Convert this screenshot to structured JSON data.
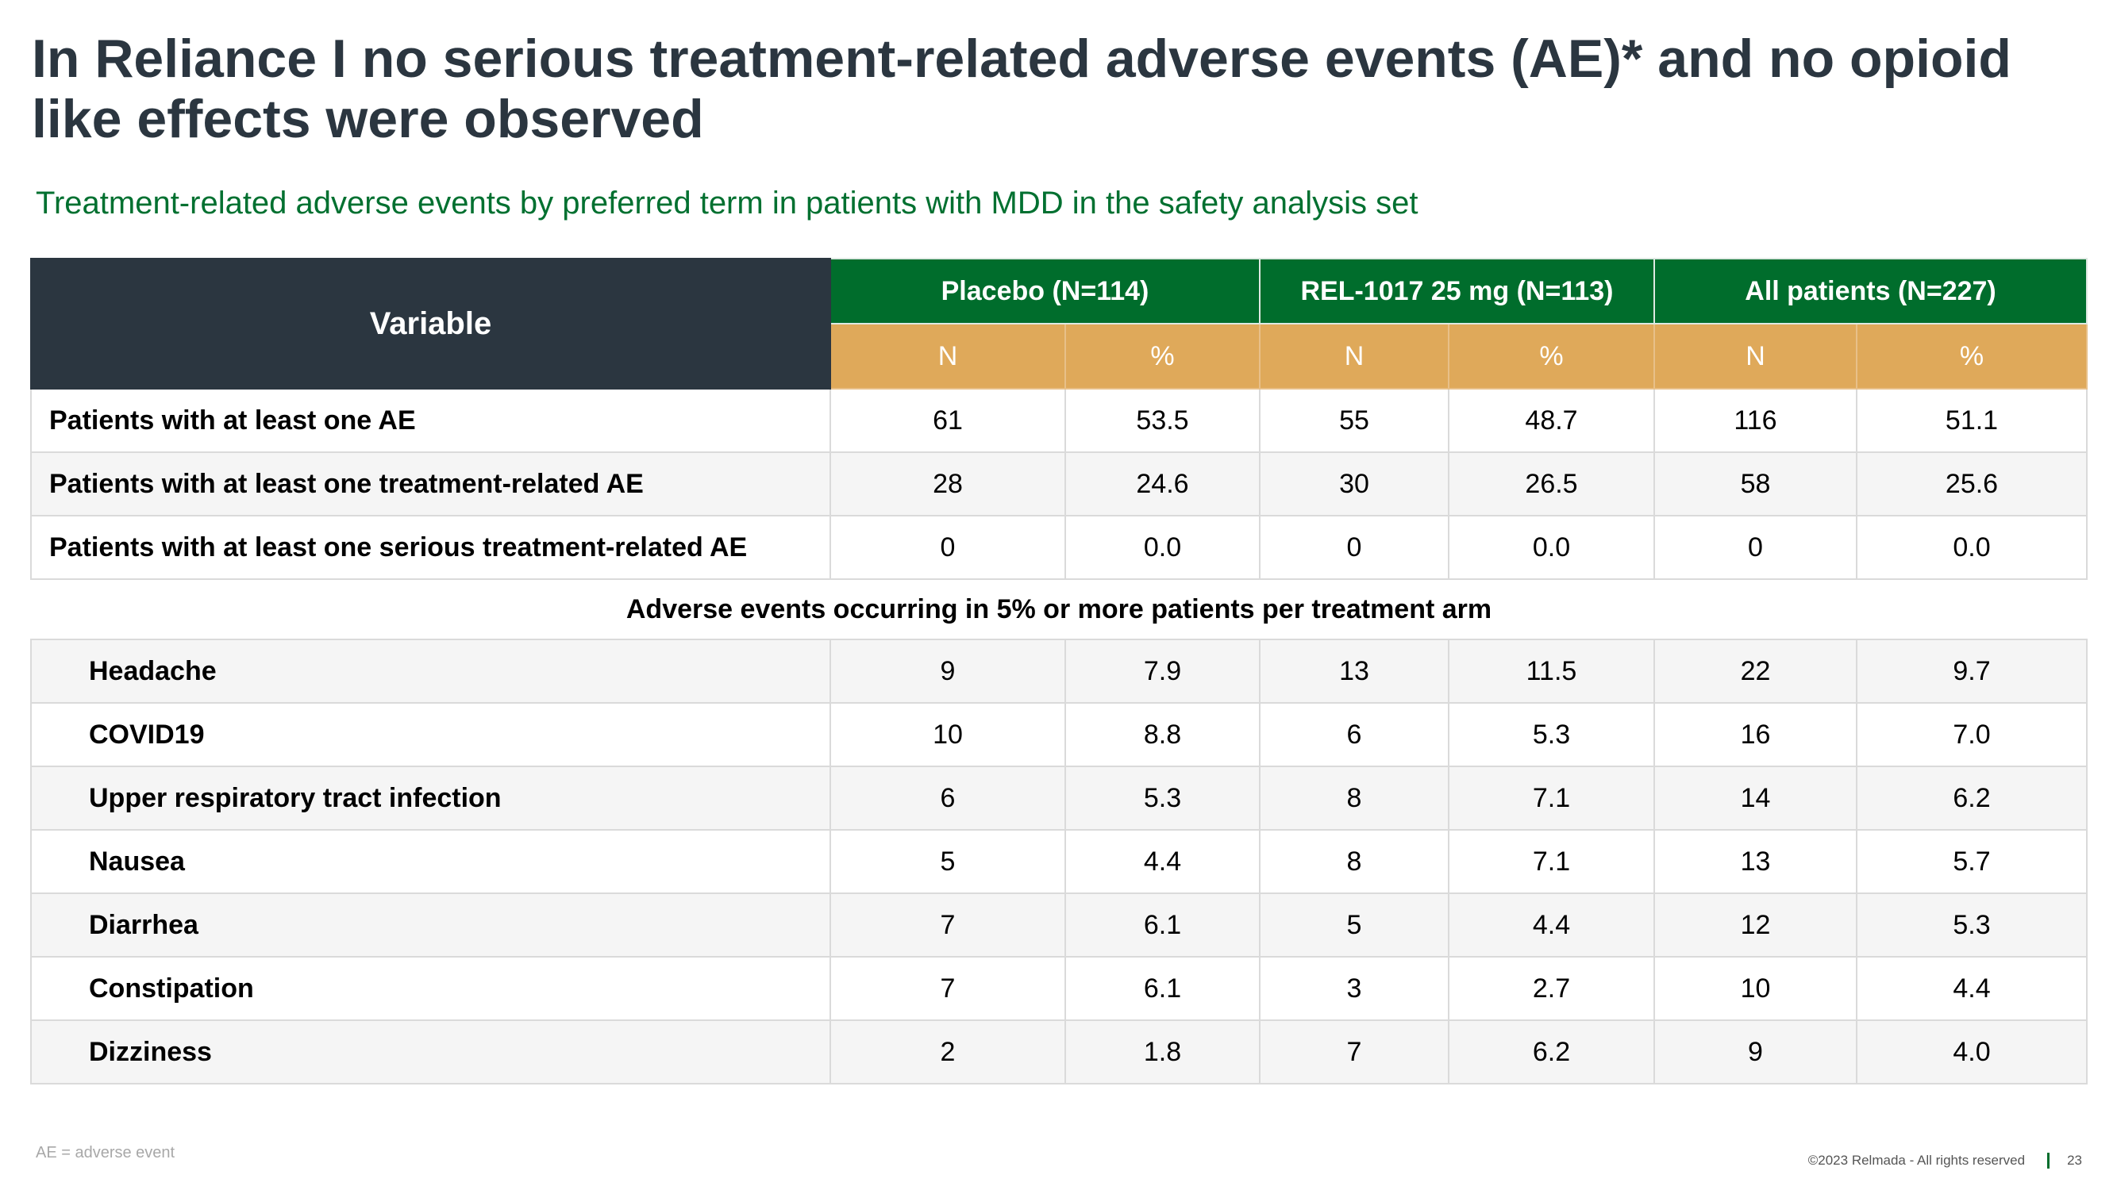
{
  "title": "In Reliance I no serious treatment-related adverse events (AE)* and no opioid like effects were observed",
  "subtitle": "Treatment-related adverse events by preferred term in patients with MDD in the safety analysis set",
  "table": {
    "variable_header": "Variable",
    "groups": [
      "Placebo (N=114)",
      "REL-1017 25 mg (N=113)",
      "All patients (N=227)"
    ],
    "subheaders": [
      "N",
      "%",
      "N",
      "%",
      "N",
      "%"
    ],
    "summary_rows": [
      {
        "label": "Patients with at least one AE",
        "values": [
          "61",
          "53.5",
          "55",
          "48.7",
          "116",
          "51.1"
        ]
      },
      {
        "label": "Patients with at least one treatment-related AE",
        "values": [
          "28",
          "24.6",
          "30",
          "26.5",
          "58",
          "25.6"
        ]
      },
      {
        "label": "Patients with at least one serious treatment-related AE",
        "values": [
          "0",
          "0.0",
          "0",
          "0.0",
          "0",
          "0.0"
        ]
      }
    ],
    "section_label": "Adverse events occurring in 5% or more patients per treatment arm",
    "ae_rows": [
      {
        "label": "Headache",
        "values": [
          "9",
          "7.9",
          "13",
          "11.5",
          "22",
          "9.7"
        ]
      },
      {
        "label": "COVID19",
        "values": [
          "10",
          "8.8",
          "6",
          "5.3",
          "16",
          "7.0"
        ]
      },
      {
        "label": "Upper respiratory tract infection",
        "values": [
          "6",
          "5.3",
          "8",
          "7.1",
          "14",
          "6.2"
        ]
      },
      {
        "label": "Nausea",
        "values": [
          "5",
          "4.4",
          "8",
          "7.1",
          "13",
          "5.7"
        ]
      },
      {
        "label": "Diarrhea",
        "values": [
          "7",
          "6.1",
          "5",
          "4.4",
          "12",
          "5.3"
        ]
      },
      {
        "label": "Constipation",
        "values": [
          "7",
          "6.1",
          "3",
          "2.7",
          "10",
          "4.4"
        ]
      },
      {
        "label": "Dizziness",
        "values": [
          "2",
          "1.8",
          "7",
          "6.2",
          "9",
          "4.0"
        ]
      }
    ]
  },
  "footnote": "AE = adverse event",
  "footer": {
    "copyright": "©2023 Relmada - All rights reserved",
    "page_number": "23"
  },
  "colors": {
    "title": "#2b3640",
    "accent_green": "#006d2c",
    "subheader_gold": "#dfa95a"
  }
}
